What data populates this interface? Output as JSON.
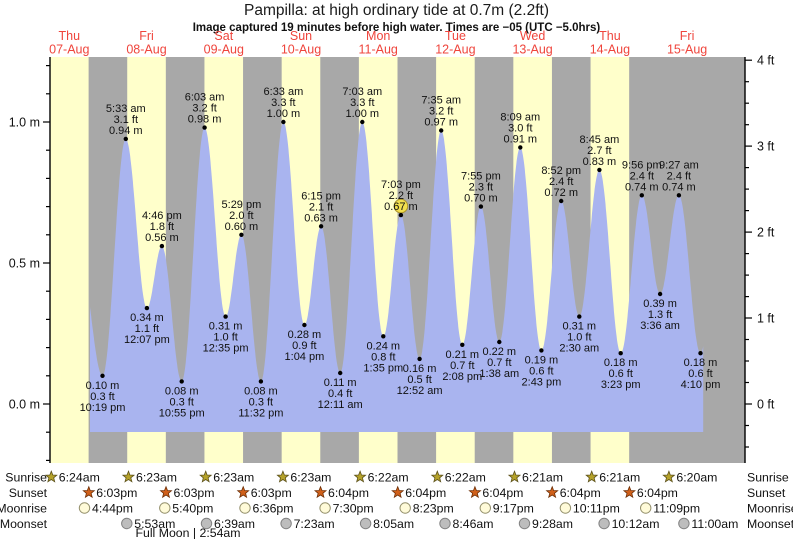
{
  "header": {
    "title": "Pampilla: at high  ordinary tide at 0.7m (2.2ft)",
    "subtitle": "Image captured 19 minutes before high water. Times are −05 (UTC −5.0hrs)"
  },
  "days": [
    {
      "weekday": "Thu",
      "date": "07-Aug"
    },
    {
      "weekday": "Fri",
      "date": "08-Aug"
    },
    {
      "weekday": "Sat",
      "date": "09-Aug"
    },
    {
      "weekday": "Sun",
      "date": "10-Aug"
    },
    {
      "weekday": "Mon",
      "date": "11-Aug"
    },
    {
      "weekday": "Tue",
      "date": "12-Aug"
    },
    {
      "weekday": "Wed",
      "date": "13-Aug"
    },
    {
      "weekday": "Thu",
      "date": "14-Aug"
    },
    {
      "weekday": "Fri",
      "date": "15-Aug"
    }
  ],
  "chart_data": {
    "type": "area",
    "title": "Pampilla: at high  ordinary tide at 0.7m (2.2ft)",
    "x_axis": "Nine day columns Thu 07-Aug through Fri 15-Aug; pale yellow = daylight, gray = night",
    "y_left": {
      "unit": "m",
      "min": -0.2,
      "max": 1.2,
      "minor_step": 0.1,
      "ticks": [
        {
          "v": 1.0,
          "label": "1.0 m"
        },
        {
          "v": 0.5,
          "label": "0.5 m"
        },
        {
          "v": 0.0,
          "label": "0.0 m"
        }
      ]
    },
    "y_right": {
      "unit": "ft",
      "min": -0.5,
      "max": 4.0,
      "minor_step": 0.25,
      "ticks": [
        {
          "v": 4,
          "label": "4 ft"
        },
        {
          "v": 3,
          "label": "3 ft"
        },
        {
          "v": 2,
          "label": "2 ft"
        },
        {
          "v": 1,
          "label": "1 ft"
        },
        {
          "v": 0,
          "label": "0 ft"
        }
      ]
    },
    "extremes": [
      {
        "day": 0,
        "type": "low",
        "time": "10:19 pm",
        "ft": "0.3 ft",
        "m": "0.10 m"
      },
      {
        "day": 1,
        "type": "high",
        "time": "5:33 am",
        "ft": "3.1 ft",
        "m": "0.94 m"
      },
      {
        "day": 1,
        "type": "low",
        "time": "12:07 pm",
        "ft": "1.1 ft",
        "m": "0.34 m"
      },
      {
        "day": 1,
        "type": "high",
        "time": "4:46 pm",
        "ft": "1.8 ft",
        "m": "0.56 m"
      },
      {
        "day": 1,
        "type": "low",
        "time": "10:55 pm",
        "ft": "0.3 ft",
        "m": "0.08 m"
      },
      {
        "day": 2,
        "type": "high",
        "time": "6:03 am",
        "ft": "3.2 ft",
        "m": "0.98 m"
      },
      {
        "day": 2,
        "type": "low",
        "time": "12:35 pm",
        "ft": "1.0 ft",
        "m": "0.31 m"
      },
      {
        "day": 2,
        "type": "high",
        "time": "5:29 pm",
        "ft": "2.0 ft",
        "m": "0.60 m"
      },
      {
        "day": 2,
        "type": "low",
        "time": "11:32 pm",
        "ft": "0.3 ft",
        "m": "0.08 m"
      },
      {
        "day": 3,
        "type": "high",
        "time": "6:33 am",
        "ft": "3.3 ft",
        "m": "1.00 m"
      },
      {
        "day": 3,
        "type": "low",
        "time": "1:04 pm",
        "ft": "0.9 ft",
        "m": "0.28 m"
      },
      {
        "day": 3,
        "type": "high",
        "time": "6:15 pm",
        "ft": "2.1 ft",
        "m": "0.63 m"
      },
      {
        "day": 4,
        "type": "low",
        "time": "12:11 am",
        "ft": "0.4 ft",
        "m": "0.11 m"
      },
      {
        "day": 4,
        "type": "high",
        "time": "7:03 am",
        "ft": "3.3 ft",
        "m": "1.00 m"
      },
      {
        "day": 4,
        "type": "low",
        "time": "1:35 pm",
        "ft": "0.8 ft",
        "m": "0.24 m"
      },
      {
        "day": 4,
        "type": "high",
        "time": "7:03 pm",
        "ft": "2.2 ft",
        "m": "0.67 m",
        "marker": "current-high"
      },
      {
        "day": 5,
        "type": "low",
        "time": "12:52 am",
        "ft": "0.5 ft",
        "m": "0.16 m"
      },
      {
        "day": 5,
        "type": "high",
        "time": "7:35 am",
        "ft": "3.2 ft",
        "m": "0.97 m"
      },
      {
        "day": 5,
        "type": "low",
        "time": "2:08 pm",
        "ft": "0.7 ft",
        "m": "0.21 m"
      },
      {
        "day": 5,
        "type": "high",
        "time": "7:55 pm",
        "ft": "2.3 ft",
        "m": "0.70 m"
      },
      {
        "day": 6,
        "type": "low",
        "time": "1:38 am",
        "ft": "0.7 ft",
        "m": "0.22 m"
      },
      {
        "day": 6,
        "type": "high",
        "time": "8:09 am",
        "ft": "3.0 ft",
        "m": "0.91 m"
      },
      {
        "day": 6,
        "type": "low",
        "time": "2:43 pm",
        "ft": "0.6 ft",
        "m": "0.19 m"
      },
      {
        "day": 6,
        "type": "high",
        "time": "8:52 pm",
        "ft": "2.4 ft",
        "m": "0.72 m"
      },
      {
        "day": 7,
        "type": "low",
        "time": "2:30 am",
        "ft": "1.0 ft",
        "m": "0.31 m"
      },
      {
        "day": 7,
        "type": "high",
        "time": "8:45 am",
        "ft": "2.7 ft",
        "m": "0.83 m"
      },
      {
        "day": 7,
        "type": "low",
        "time": "3:23 pm",
        "ft": "0.6 ft",
        "m": "0.18 m"
      },
      {
        "day": 7,
        "type": "high",
        "time": "9:56 pm",
        "ft": "2.4 ft",
        "m": "0.74 m"
      },
      {
        "day": 8,
        "type": "low",
        "time": "3:36 am",
        "ft": "1.3 ft",
        "m": "0.39 m"
      },
      {
        "day": 8,
        "type": "high",
        "time": "9:27 am",
        "ft": "2.4 ft",
        "m": "0.74 m"
      },
      {
        "day": 8,
        "type": "low",
        "time": "4:10 pm",
        "ft": "0.6 ft",
        "m": "0.18 m"
      }
    ],
    "curve_window": {
      "start_h": 18.43,
      "end_h": 209.0,
      "prev_high_h": 15.5,
      "prev_high_m": 0.5,
      "next_high_h": 214.5,
      "next_high_m": 0.75
    }
  },
  "astro": {
    "left_labels": [
      "Sunrise",
      "Sunset",
      "Moonrise",
      "Moonset"
    ],
    "right_labels": [
      "Sunrise",
      "Sunset",
      "Moonrise",
      "Moonset"
    ],
    "sunrise": [
      {
        "day": 0,
        "time": "6:24am"
      },
      {
        "day": 1,
        "time": "6:23am"
      },
      {
        "day": 2,
        "time": "6:23am"
      },
      {
        "day": 3,
        "time": "6:23am"
      },
      {
        "day": 4,
        "time": "6:22am"
      },
      {
        "day": 5,
        "time": "6:22am"
      },
      {
        "day": 6,
        "time": "6:21am"
      },
      {
        "day": 7,
        "time": "6:21am"
      },
      {
        "day": 8,
        "time": "6:20am"
      }
    ],
    "sunset": [
      {
        "day": 0,
        "time": "6:03pm"
      },
      {
        "day": 1,
        "time": "6:03pm"
      },
      {
        "day": 2,
        "time": "6:03pm"
      },
      {
        "day": 3,
        "time": "6:04pm"
      },
      {
        "day": 4,
        "time": "6:04pm"
      },
      {
        "day": 5,
        "time": "6:04pm"
      },
      {
        "day": 6,
        "time": "6:04pm"
      },
      {
        "day": 7,
        "time": "6:04pm"
      }
    ],
    "moonrise": [
      {
        "day": 0,
        "time": "4:44pm"
      },
      {
        "day": 1,
        "time": "5:40pm"
      },
      {
        "day": 2,
        "time": "6:36pm"
      },
      {
        "day": 3,
        "time": "7:30pm"
      },
      {
        "day": 4,
        "time": "8:23pm"
      },
      {
        "day": 5,
        "time": "9:17pm"
      },
      {
        "day": 6,
        "time": "10:11pm"
      },
      {
        "day": 7,
        "time": "11:09pm"
      }
    ],
    "moonset": [
      {
        "day": 1,
        "time": "5:53am"
      },
      {
        "day": 2,
        "time": "6:39am"
      },
      {
        "day": 3,
        "time": "7:23am"
      },
      {
        "day": 4,
        "time": "8:05am"
      },
      {
        "day": 5,
        "time": "8:46am"
      },
      {
        "day": 6,
        "time": "9:28am"
      },
      {
        "day": 7,
        "time": "10:12am"
      },
      {
        "day": 8,
        "time": "11:00am"
      }
    ],
    "full_moon": "Full Moon | 2:54am"
  },
  "colors": {
    "day_band": "#ffffcb",
    "night_band": "#a8a8a8",
    "tide_area": "#a9b4ef",
    "date_red": "#ef453c",
    "current_marker": "#f2df4e",
    "current_marker_ring": "#a8922a",
    "sunrise_star": "#b5a22a",
    "sunrise_star_edge": "#5c511b",
    "sunset_star": "#d0601a",
    "sunset_star_edge": "#6e2f06",
    "moonrise_circle": "#fffbd9",
    "moonrise_circle_edge": "#94906c",
    "moonset_circle": "#bdbdbd",
    "moonset_circle_edge": "#828282"
  }
}
